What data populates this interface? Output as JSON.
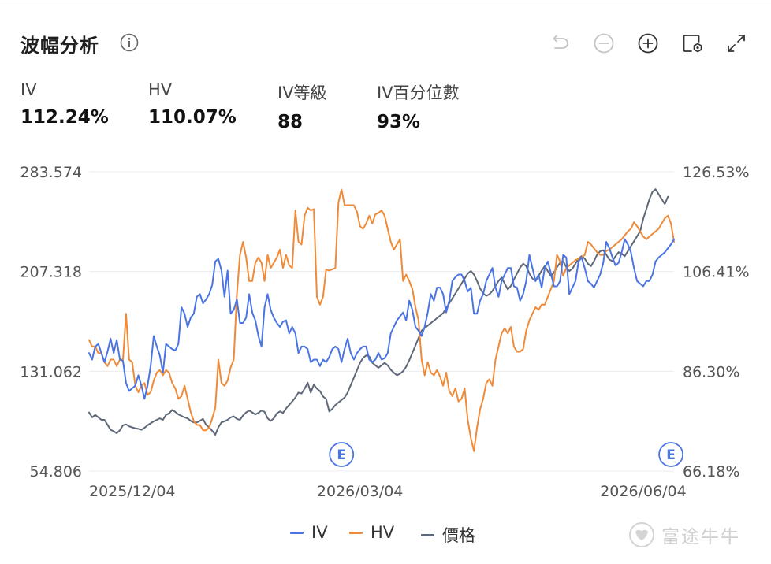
{
  "header": {
    "title": "波幅分析",
    "icons": [
      "info-icon",
      "undo-icon",
      "zoom-out-icon",
      "zoom-in-icon",
      "settings-icon",
      "fullscreen-icon"
    ]
  },
  "metrics": [
    {
      "label": "IV",
      "value": "112.24%"
    },
    {
      "label": "HV",
      "value": "110.07%"
    },
    {
      "label": "IV等級",
      "value": "88"
    },
    {
      "label": "IV百分位數",
      "value": "93%"
    }
  ],
  "colors": {
    "iv": "#4a74e4",
    "hv": "#ef8a39",
    "price": "#5e6878",
    "grid": "#ececec",
    "axis": "#555555",
    "earnings": "#4a74e4"
  },
  "watermark": "富途牛牛",
  "chart_data": {
    "type": "line",
    "x_ticks": [
      "2025/12/04",
      "2026/03/04",
      "2026/06/04"
    ],
    "x_tick_index": [
      0,
      88,
      180
    ],
    "left_axis": {
      "ticks": [
        "283.574",
        "207.318",
        "131.062",
        "54.806"
      ],
      "range": [
        54.806,
        283.574
      ]
    },
    "right_axis": {
      "ticks": [
        "126.53%",
        "106.41%",
        "86.30%",
        "66.18%"
      ],
      "range": [
        66.18,
        126.53
      ]
    },
    "earnings_markers": [
      {
        "label": "E",
        "index": 82
      },
      {
        "label": "E",
        "index": 189
      }
    ],
    "legend": [
      "IV",
      "HV",
      "價格"
    ],
    "grid": true,
    "series": [
      {
        "name": "IV",
        "key": "iv",
        "axis": "left",
        "values": [
          145,
          140,
          150,
          152,
          145,
          138,
          146,
          156,
          145,
          155,
          140,
          139,
          122,
          116,
          118,
          120,
          128,
          120,
          110,
          120,
          135,
          158,
          150,
          143,
          130,
          152,
          150,
          148,
          147,
          152,
          180,
          175,
          165,
          172,
          175,
          188,
          190,
          183,
          186,
          190,
          197,
          215,
          217,
          208,
          188,
          208,
          175,
          178,
          186,
          168,
          168,
          172,
          190,
          176,
          170,
          158,
          150,
          180,
          190,
          178,
          172,
          168,
          165,
          169,
          170,
          160,
          165,
          160,
          145,
          150,
          150,
          148,
          138,
          140,
          140,
          135,
          140,
          138,
          142,
          148,
          150,
          148,
          138,
          148,
          156,
          145,
          140,
          145,
          148,
          150,
          150,
          140,
          138,
          140,
          145,
          140,
          141,
          145,
          160,
          165,
          170,
          173,
          176,
          170,
          185,
          178,
          165,
          162,
          158,
          165,
          176,
          190,
          185,
          195,
          195,
          190,
          176,
          185,
          200,
          203,
          205,
          205,
          200,
          192,
          195,
          175,
          175,
          185,
          190,
          200,
          205,
          210,
          195,
          188,
          200,
          205,
          210,
          210,
          196,
          195,
          185,
          190,
          200,
          220,
          210,
          200,
          205,
          195,
          210,
          215,
          206,
          196,
          196,
          200,
          220,
          218,
          190,
          195,
          200,
          215,
          218,
          210,
          200,
          198,
          195,
          200,
          205,
          214,
          230,
          225,
          218,
          212,
          214,
          222,
          232,
          228,
          222,
          210,
          200,
          198,
          196,
          200,
          200,
          205,
          215,
          218,
          220,
          222,
          225,
          228,
          232
        ]
      },
      {
        "name": "HV",
        "key": "hv",
        "axis": "left",
        "values": [
          155,
          150,
          150,
          145,
          145,
          138,
          135,
          140,
          140,
          135,
          140,
          140,
          175,
          140,
          138,
          120,
          115,
          120,
          122,
          113,
          115,
          124,
          130,
          132,
          128,
          132,
          130,
          122,
          118,
          110,
          112,
          120,
          110,
          100,
          93,
          90,
          90,
          86,
          86,
          88,
          95,
          103,
          140,
          122,
          120,
          124,
          134,
          140,
          190,
          220,
          230,
          218,
          200,
          200,
          214,
          218,
          214,
          200,
          220,
          210,
          214,
          218,
          224,
          210,
          220,
          212,
          210,
          254,
          230,
          228,
          250,
          256,
          254,
          255,
          188,
          182,
          188,
          209,
          208,
          209,
          210,
          260,
          270,
          258,
          258,
          258,
          258,
          253,
          242,
          240,
          244,
          250,
          244,
          251,
          252,
          254,
          250,
          240,
          230,
          224,
          228,
          232,
          200,
          205,
          200,
          194,
          180,
          170,
          140,
          128,
          138,
          130,
          128,
          132,
          127,
          120,
          130,
          116,
          112,
          118,
          108,
          110,
          118,
          94,
          80,
          70,
          88,
          102,
          110,
          122,
          125,
          120,
          140,
          150,
          160,
          164,
          160,
          165,
          150,
          146,
          146,
          148,
          162,
          170,
          175,
          180,
          178,
          182,
          182,
          188,
          194,
          200,
          220,
          215,
          204,
          210,
          212,
          214,
          216,
          217,
          218,
          220,
          230,
          228,
          225,
          222,
          220,
          220,
          223,
          224,
          226,
          228,
          230,
          232,
          235,
          238,
          240,
          245,
          242,
          238,
          234,
          232,
          234,
          236,
          238,
          240,
          244,
          248,
          250,
          244,
          230
        ]
      },
      {
        "name": "價格",
        "key": "price",
        "axis": "right",
        "values": [
          78,
          77,
          77.5,
          77,
          76.5,
          76.5,
          75.5,
          74.5,
          74.2,
          73.8,
          74.4,
          75.4,
          75.6,
          75.2,
          75.0,
          74.8,
          74.7,
          74.5,
          74.9,
          75.4,
          75.8,
          76.2,
          76.5,
          76.8,
          76.5,
          77.5,
          77.8,
          78.5,
          78.1,
          77.6,
          77.3,
          77.0,
          76.8,
          76.3,
          76.0,
          76.0,
          76.3,
          76.7,
          75.5,
          75.0,
          74.3,
          73.5,
          75.0,
          76.0,
          76.2,
          76.5,
          77.0,
          77.2,
          76.7,
          76.5,
          77.4,
          78.0,
          78.4,
          78.0,
          77.6,
          77.9,
          78.4,
          78.1,
          76.8,
          76.3,
          76.8,
          77.8,
          78.2,
          77.9,
          78.8,
          79.5,
          80.2,
          81.0,
          82.0,
          81.8,
          82.8,
          84.0,
          82.0,
          83.6,
          82.8,
          82.3,
          81.2,
          80.7,
          78.2,
          78.7,
          79.5,
          80.0,
          80.5,
          81.0,
          82.0,
          83.5,
          85.0,
          86.5,
          88.0,
          89.0,
          89.5,
          89.3,
          88.0,
          87.5,
          87.0,
          87.5,
          88.0,
          87.5,
          86.6,
          86.0,
          85.5,
          85.8,
          86.3,
          87.2,
          88.5,
          90.0,
          91.5,
          93.0,
          94.5,
          95.0,
          95.5,
          96.0,
          96.5,
          97.0,
          97.5,
          98.0,
          99.0,
          100.0,
          101.0,
          102.0,
          103.0,
          104.0,
          105.0,
          106.0,
          106.5,
          105.8,
          104.5,
          103.0,
          102.0,
          101.5,
          101.8,
          102.5,
          103.5,
          104.5,
          105.2,
          104.0,
          102.8,
          103.5,
          104.8,
          106.0,
          107.2,
          108.0,
          107.5,
          106.0,
          105.0,
          104.5,
          105.5,
          106.6,
          107.5,
          106.5,
          105.5,
          106.2,
          107.3,
          108.2,
          108.5,
          107.3,
          106.5,
          107.0,
          108.0,
          109.0,
          109.5,
          109.0,
          108.0,
          107.5,
          108.5,
          109.8,
          110.5,
          110.7,
          109.8,
          108.8,
          108.5,
          109.5,
          110.3,
          110.0,
          109.5,
          110.5,
          111.5,
          112.5,
          113.5,
          114.5,
          117.0,
          119.0,
          121.0,
          122.5,
          123.0,
          122.0,
          121.0,
          120.0,
          121.5
        ]
      }
    ]
  }
}
